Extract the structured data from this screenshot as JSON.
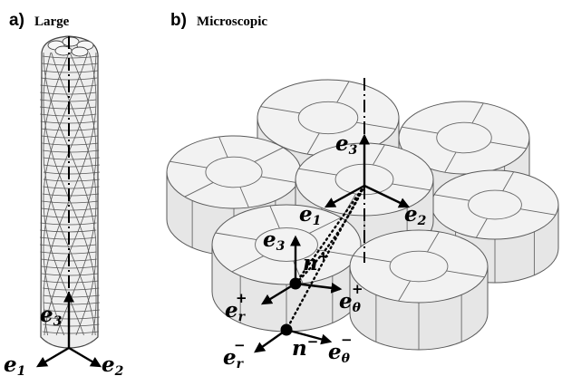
{
  "panel_a": {
    "letter": "a)",
    "word": "Large",
    "vectors": {
      "e3": {
        "base": "e",
        "sub": "3"
      },
      "e1": {
        "base": "e",
        "sub": "1"
      },
      "e2": {
        "base": "e",
        "sub": "2"
      }
    }
  },
  "panel_b": {
    "letter": "b)",
    "word": "Microscopic",
    "vectors": {
      "e3_top": {
        "base": "e",
        "sub": "3"
      },
      "e1": {
        "base": "e",
        "sub": "1"
      },
      "e2": {
        "base": "e",
        "sub": "2"
      },
      "e3_mid": {
        "base": "e",
        "sub": "3"
      },
      "n_plus": {
        "base": "n",
        "sup": "+"
      },
      "er_plus": {
        "base": "e",
        "sub": "r",
        "sup": "+"
      },
      "etheta_plus": {
        "base": "e",
        "sub": "θ",
        "sup": "+"
      },
      "n_minus": {
        "base": "n",
        "sup": "−"
      },
      "er_minus": {
        "base": "e",
        "sub": "r",
        "sup": "−"
      },
      "etheta_minus": {
        "base": "e",
        "sub": "θ",
        "sup": "−"
      }
    }
  },
  "colors": {
    "fill": "#e6e6e6",
    "stroke": "#5a5a5a",
    "ink": "#000000"
  }
}
